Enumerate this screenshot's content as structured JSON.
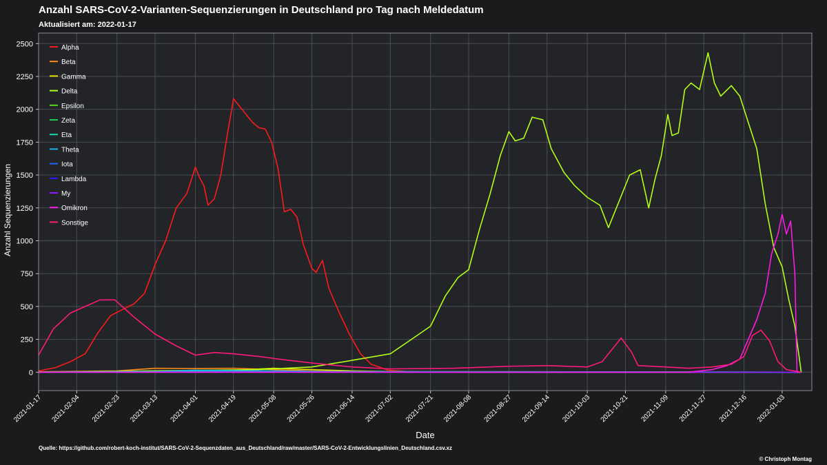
{
  "header": {
    "title": "Anzahl SARS-CoV-2-Varianten-Sequenzierungen in Deutschland pro Tag nach Meldedatum",
    "subtitle": "Aktualisiert am: 2022-01-17"
  },
  "footer": {
    "source": "Quelle: https://github.com/robert-koch-institut/SARS-CoV-2-Sequenzdaten_aus_Deutschland/raw/master/SARS-CoV-2-Entwicklungslinien_Deutschland.csv.xz",
    "credit": "© Christoph Montag"
  },
  "colors": {
    "background": "#1b1b1e",
    "plot_background": "#222428",
    "grid": "#4a4d52",
    "text": "#ffffff"
  },
  "chart_data": {
    "type": "line",
    "title": "Anzahl SARS-CoV-2-Varianten-Sequenzierungen in Deutschland pro Tag nach Meldedatum",
    "xlabel": "Date",
    "ylabel": "Anzahl Sequenzierungen",
    "x_type": "date",
    "xlim": [
      "2021-01-17",
      "2022-01-17"
    ],
    "ylim": [
      -140,
      2580
    ],
    "xticks": [
      "2021-01-17",
      "2021-02-04",
      "2021-02-23",
      "2021-03-13",
      "2021-04-01",
      "2021-04-19",
      "2021-05-08",
      "2021-05-26",
      "2021-06-14",
      "2021-07-02",
      "2021-07-21",
      "2021-08-08",
      "2021-08-27",
      "2021-09-14",
      "2021-10-03",
      "2021-10-21",
      "2021-11-09",
      "2021-11-27",
      "2021-12-16",
      "2022-01-03"
    ],
    "yticks": [
      0,
      250,
      500,
      750,
      1000,
      1250,
      1500,
      1750,
      2000,
      2250,
      2500
    ],
    "grid": true,
    "legend_position": "top-left",
    "series": [
      {
        "name": "Alpha",
        "color": "#ff1a1a",
        "x": [
          "2021-01-17",
          "2021-01-25",
          "2021-02-01",
          "2021-02-08",
          "2021-02-14",
          "2021-02-20",
          "2021-02-26",
          "2021-03-03",
          "2021-03-08",
          "2021-03-13",
          "2021-03-18",
          "2021-03-23",
          "2021-03-28",
          "2021-04-01",
          "2021-04-03",
          "2021-04-05",
          "2021-04-07",
          "2021-04-10",
          "2021-04-13",
          "2021-04-16",
          "2021-04-19",
          "2021-04-22",
          "2021-04-25",
          "2021-04-28",
          "2021-05-01",
          "2021-05-04",
          "2021-05-07",
          "2021-05-10",
          "2021-05-13",
          "2021-05-16",
          "2021-05-19",
          "2021-05-22",
          "2021-05-26",
          "2021-05-28",
          "2021-05-31",
          "2021-06-03",
          "2021-06-08",
          "2021-06-13",
          "2021-06-18",
          "2021-06-23",
          "2021-07-01",
          "2021-07-10",
          "2021-07-20",
          "2021-08-01",
          "2022-01-12"
        ],
        "values": [
          10,
          35,
          80,
          140,
          300,
          430,
          480,
          520,
          600,
          820,
          1000,
          1250,
          1360,
          1560,
          1480,
          1420,
          1270,
          1320,
          1500,
          1800,
          2080,
          2020,
          1960,
          1900,
          1860,
          1850,
          1750,
          1550,
          1220,
          1240,
          1180,
          970,
          790,
          760,
          850,
          640,
          450,
          280,
          140,
          60,
          15,
          5,
          2,
          0,
          0
        ]
      },
      {
        "name": "Beta",
        "color": "#ff8c1a",
        "x": [
          "2021-01-17",
          "2021-02-23",
          "2021-03-13",
          "2021-04-01",
          "2021-04-19",
          "2021-05-08",
          "2021-05-26",
          "2021-06-14",
          "2021-07-02",
          "2021-07-21",
          "2021-08-08",
          "2022-01-12"
        ],
        "values": [
          3,
          10,
          30,
          28,
          30,
          20,
          10,
          5,
          5,
          2,
          0,
          0
        ]
      },
      {
        "name": "Gamma",
        "color": "#e6e600",
        "x": [
          "2021-01-17",
          "2021-03-13",
          "2021-04-19",
          "2021-05-08",
          "2021-05-26",
          "2021-06-14",
          "2021-07-02",
          "2021-07-21",
          "2021-08-08",
          "2022-01-12"
        ],
        "values": [
          0,
          0,
          15,
          30,
          20,
          10,
          5,
          2,
          0,
          0
        ]
      },
      {
        "name": "Delta",
        "color": "#b3ff1a",
        "x": [
          "2021-01-17",
          "2021-05-01",
          "2021-05-26",
          "2021-06-14",
          "2021-07-02",
          "2021-07-12",
          "2021-07-21",
          "2021-07-28",
          "2021-08-03",
          "2021-08-08",
          "2021-08-13",
          "2021-08-18",
          "2021-08-23",
          "2021-08-27",
          "2021-08-30",
          "2021-09-03",
          "2021-09-07",
          "2021-09-12",
          "2021-09-16",
          "2021-09-22",
          "2021-09-27",
          "2021-10-03",
          "2021-10-09",
          "2021-10-13",
          "2021-10-18",
          "2021-10-23",
          "2021-10-28",
          "2021-11-01",
          "2021-11-04",
          "2021-11-07",
          "2021-11-10",
          "2021-11-12",
          "2021-11-15",
          "2021-11-18",
          "2021-11-21",
          "2021-11-25",
          "2021-11-29",
          "2021-12-02",
          "2021-12-05",
          "2021-12-10",
          "2021-12-14",
          "2021-12-18",
          "2021-12-22",
          "2021-12-26",
          "2021-12-30",
          "2022-01-03",
          "2022-01-06",
          "2022-01-09",
          "2022-01-12"
        ],
        "values": [
          0,
          20,
          40,
          90,
          140,
          250,
          350,
          580,
          720,
          780,
          1080,
          1350,
          1650,
          1830,
          1760,
          1780,
          1940,
          1920,
          1700,
          1520,
          1420,
          1330,
          1270,
          1100,
          1300,
          1500,
          1540,
          1250,
          1470,
          1650,
          1960,
          1800,
          1820,
          2150,
          2200,
          2150,
          2430,
          2200,
          2100,
          2180,
          2100,
          1900,
          1700,
          1280,
          950,
          800,
          560,
          350,
          0
        ]
      },
      {
        "name": "Epsilon",
        "color": "#52e01a",
        "x": [
          "2021-01-17",
          "2021-05-08",
          "2021-05-26",
          "2022-01-12"
        ],
        "values": [
          0,
          10,
          5,
          0
        ]
      },
      {
        "name": "Zeta",
        "color": "#1acc55",
        "x": [
          "2021-01-17",
          "2022-01-12"
        ],
        "values": [
          0,
          0
        ]
      },
      {
        "name": "Eta",
        "color": "#1ad6b0",
        "x": [
          "2021-01-17",
          "2021-03-13",
          "2021-04-19",
          "2021-05-26",
          "2022-01-12"
        ],
        "values": [
          0,
          5,
          10,
          5,
          0
        ]
      },
      {
        "name": "Theta",
        "color": "#1ab8e6",
        "x": [
          "2021-01-17",
          "2021-03-13",
          "2021-04-01",
          "2021-05-08",
          "2021-06-14",
          "2022-01-12"
        ],
        "values": [
          0,
          5,
          15,
          10,
          3,
          0
        ]
      },
      {
        "name": "Iota",
        "color": "#1a66ff",
        "x": [
          "2021-01-17",
          "2021-04-19",
          "2022-01-12"
        ],
        "values": [
          0,
          3,
          0
        ]
      },
      {
        "name": "Lambda",
        "color": "#2a1aff",
        "x": [
          "2021-01-17",
          "2022-01-12"
        ],
        "values": [
          0,
          0
        ]
      },
      {
        "name": "My",
        "color": "#8c1aff",
        "x": [
          "2021-01-17",
          "2022-01-12"
        ],
        "values": [
          0,
          0
        ]
      },
      {
        "name": "Omikron",
        "color": "#ff1ae6",
        "x": [
          "2021-01-17",
          "2021-11-20",
          "2021-12-01",
          "2021-12-08",
          "2021-12-14",
          "2021-12-18",
          "2021-12-22",
          "2021-12-26",
          "2021-12-29",
          "2022-01-01",
          "2022-01-03",
          "2022-01-05",
          "2022-01-07",
          "2022-01-09",
          "2022-01-10",
          "2022-01-12"
        ],
        "values": [
          0,
          0,
          20,
          50,
          100,
          250,
          400,
          600,
          900,
          1050,
          1200,
          1050,
          1150,
          750,
          0,
          0
        ]
      },
      {
        "name": "Sonstige",
        "color": "#ff1a7a",
        "x": [
          "2021-01-17",
          "2021-01-24",
          "2021-02-01",
          "2021-02-08",
          "2021-02-15",
          "2021-02-22",
          "2021-03-03",
          "2021-03-13",
          "2021-03-23",
          "2021-04-01",
          "2021-04-10",
          "2021-04-19",
          "2021-05-01",
          "2021-05-10",
          "2021-05-26",
          "2021-06-14",
          "2021-07-02",
          "2021-08-01",
          "2021-08-27",
          "2021-09-14",
          "2021-10-03",
          "2021-10-10",
          "2021-10-16",
          "2021-10-19",
          "2021-10-24",
          "2021-10-27",
          "2021-11-09",
          "2021-11-20",
          "2021-12-01",
          "2021-12-10",
          "2021-12-16",
          "2021-12-20",
          "2021-12-24",
          "2021-12-28",
          "2022-01-01",
          "2022-01-05",
          "2022-01-12"
        ],
        "values": [
          130,
          330,
          450,
          500,
          550,
          550,
          420,
          290,
          200,
          130,
          150,
          140,
          120,
          100,
          70,
          40,
          25,
          30,
          45,
          50,
          40,
          80,
          200,
          260,
          150,
          50,
          40,
          30,
          40,
          60,
          120,
          280,
          320,
          240,
          80,
          20,
          0
        ]
      }
    ]
  }
}
